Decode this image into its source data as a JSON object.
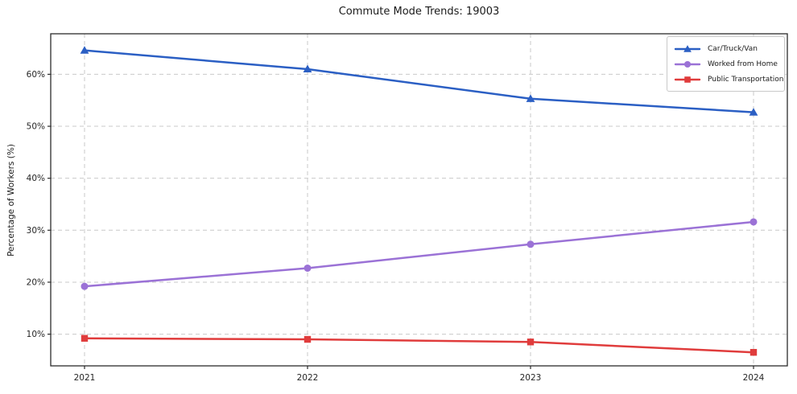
{
  "chart_data": {
    "type": "line",
    "title": "Commute Mode Trends: 19003",
    "xlabel": "",
    "ylabel": "Percentage of Workers (%)",
    "categories": [
      "2021",
      "2022",
      "2023",
      "2024"
    ],
    "series": [
      {
        "name": "Car/Truck/Van",
        "values": [
          64.6,
          61.0,
          55.3,
          52.7
        ],
        "color": "#2b5fc4",
        "marker": "triangle"
      },
      {
        "name": "Worked from Home",
        "values": [
          19.2,
          22.7,
          27.3,
          31.6
        ],
        "color": "#9b72d6",
        "marker": "circle"
      },
      {
        "name": "Public Transportation",
        "values": [
          9.2,
          9.0,
          8.5,
          6.5
        ],
        "color": "#e03c3c",
        "marker": "square"
      }
    ],
    "yticks": [
      10,
      20,
      30,
      40,
      50,
      60
    ],
    "ytick_suffix": "%",
    "ylim": [
      3.9,
      67.8
    ],
    "grid": "dashed-both-axes",
    "legend_position": "upper-right"
  },
  "colors": {
    "grid": "#c9c9c9",
    "spine": "#2b2b2b",
    "tick_text": "#262626"
  }
}
